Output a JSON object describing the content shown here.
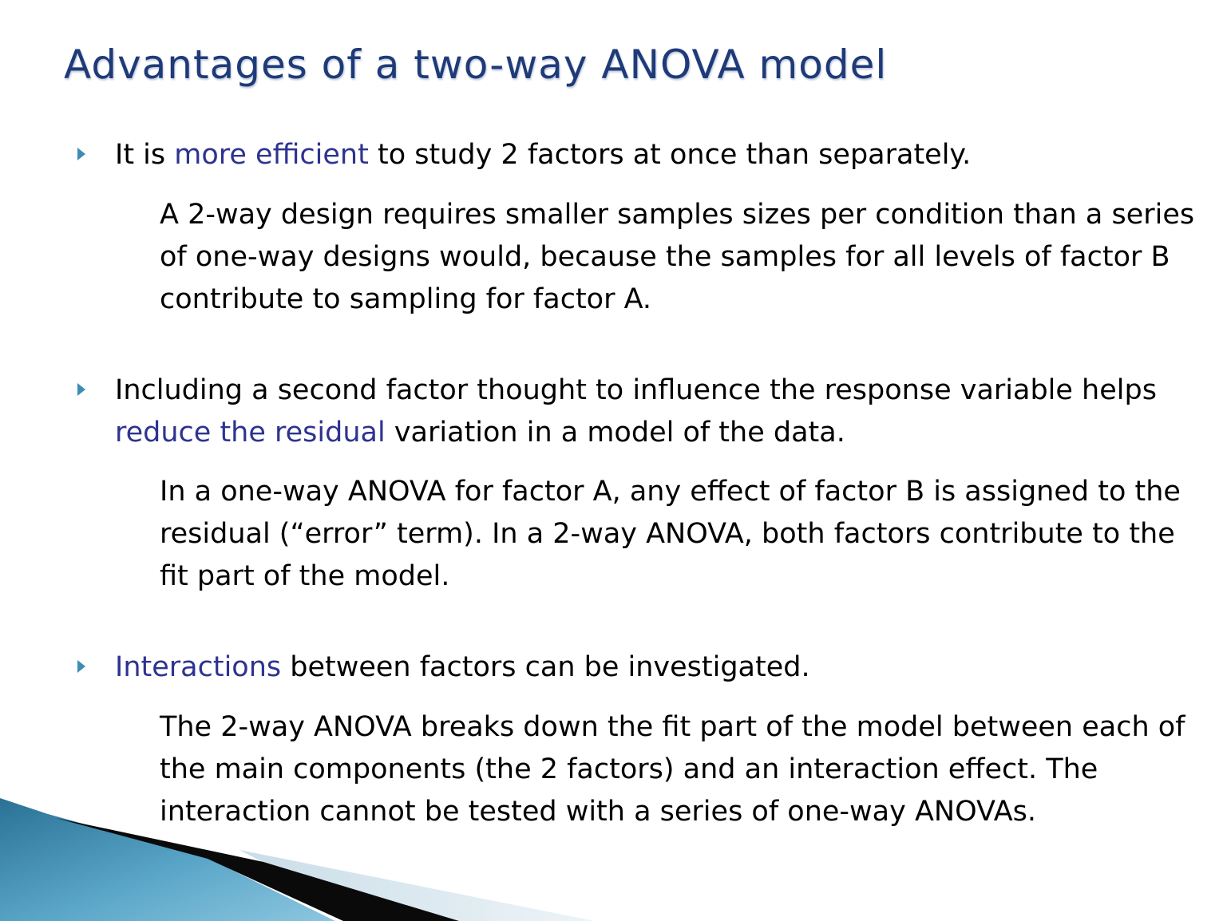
{
  "slide": {
    "title": "Advantages of a two-way ANOVA model",
    "accent_color": "#2e3390",
    "bullet_color": "#3d8db3",
    "bullets": [
      {
        "icon": "triangle-bullet-icon",
        "lead": "It is ",
        "highlight": "more efficient",
        "tail": " to study 2 factors at once than separately.",
        "detail": "A 2-way design requires smaller samples sizes per condition than a series of one-way designs would, because the samples for all levels of factor B contribute to sampling for factor A."
      },
      {
        "icon": "triangle-bullet-icon",
        "lead": "Including a second factor thought to influence the response variable helps ",
        "highlight": "reduce the residual",
        "tail": " variation in a model of the data.",
        "detail": "In a one-way ANOVA for factor A, any effect of factor B is assigned to the residual (“error” term). In a 2-way ANOVA, both factors contribute to the fit part of the model."
      },
      {
        "icon": "triangle-bullet-icon",
        "lead": "",
        "highlight": "Interactions",
        "tail": " between factors can be investigated.",
        "detail": "The 2-way ANOVA breaks down the fit part of the model between each of the main components (the 2 factors) and an interaction effect. The interaction cannot be tested with a series of one-way ANOVAs."
      }
    ]
  }
}
